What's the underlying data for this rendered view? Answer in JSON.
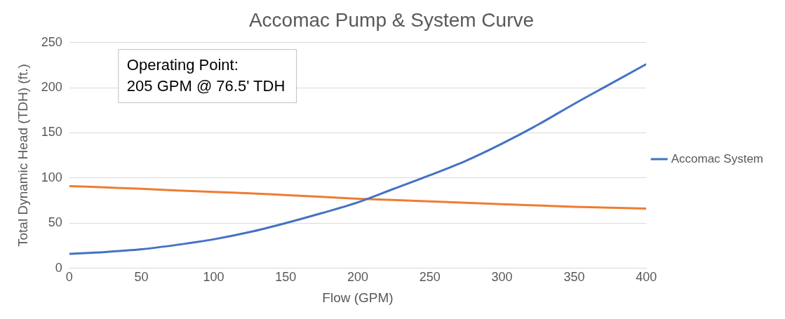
{
  "chart_data": {
    "type": "line",
    "title": "Accomac Pump & System Curve",
    "xlabel": "Flow (GPM)",
    "ylabel": "Total Dynamic Head (TDH) (ft.)",
    "x": [
      0,
      25,
      50,
      75,
      100,
      125,
      150,
      175,
      200,
      225,
      250,
      275,
      300,
      325,
      350,
      375,
      400
    ],
    "series": [
      {
        "name": "Accomac System",
        "color": "#4472c4",
        "values": [
          16,
          18,
          21,
          26,
          32,
          40,
          50,
          61,
          73,
          88,
          103,
          119,
          138,
          159,
          182,
          204,
          226
        ]
      },
      {
        "color": "#ed7d31",
        "values": [
          91,
          89.5,
          88,
          86,
          84.5,
          83,
          81,
          79,
          77,
          75.5,
          74,
          72.5,
          71,
          69.5,
          68,
          67,
          66
        ]
      }
    ],
    "xlim": [
      0,
      400
    ],
    "xticks": [
      0,
      50,
      100,
      150,
      200,
      250,
      300,
      350,
      400
    ],
    "ylim": [
      0,
      250
    ],
    "yticks": [
      0,
      50,
      100,
      150,
      200,
      250
    ],
    "grid": "y",
    "legend": "right",
    "marker": "none",
    "line_style": "solid",
    "annotations": [
      "Operating Point:\n205 GPM @ 76.5' TDH"
    ]
  }
}
